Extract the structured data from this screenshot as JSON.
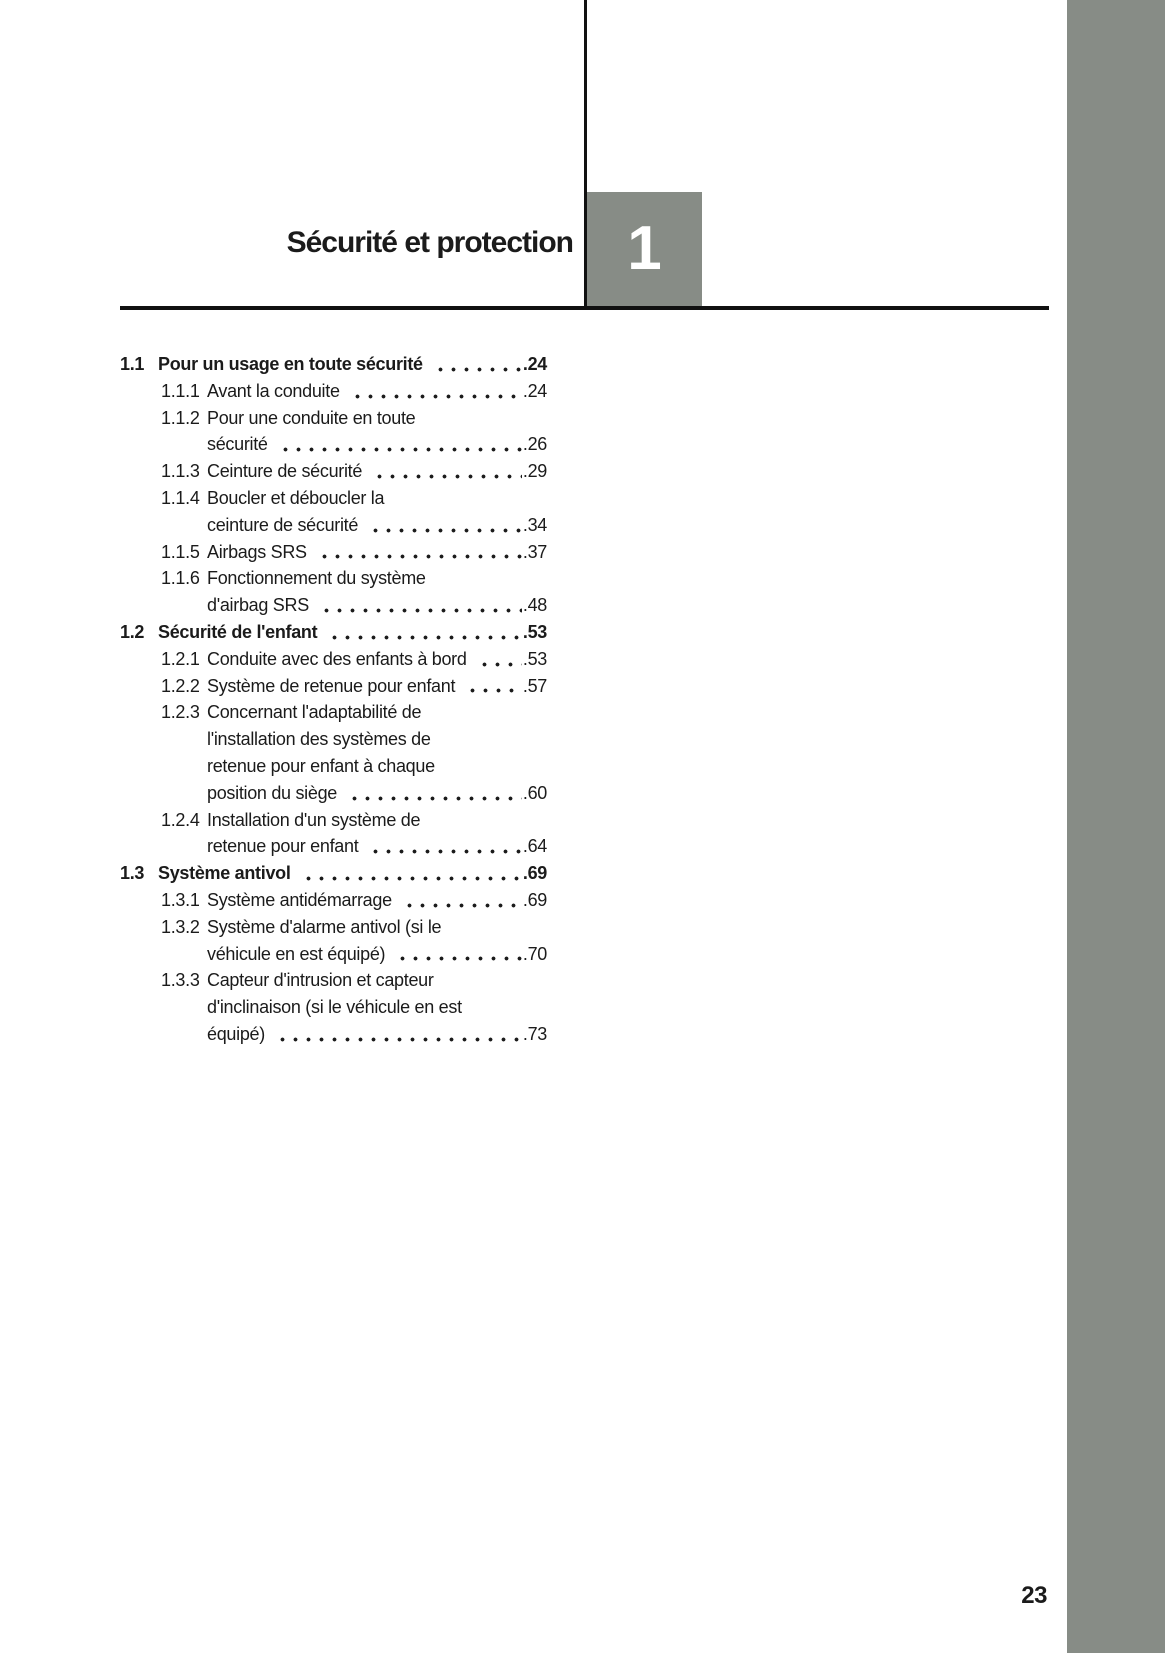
{
  "page": {
    "chapter_title": "Sécurité et protection",
    "chapter_number": "1",
    "page_number": "23"
  },
  "colors": {
    "band_gray": "#878c86",
    "rule_black": "#111111",
    "text": "#1b1b1b",
    "chapter_number_white": "#ffffff"
  },
  "toc": {
    "entries": [
      {
        "number": "1.1",
        "level": 1,
        "lines": [
          "Pour un usage en toute sécurité"
        ],
        "page": ".24"
      },
      {
        "number": "1.1.1",
        "level": 2,
        "lines": [
          "Avant la conduite"
        ],
        "page": ".24"
      },
      {
        "number": "1.1.2",
        "level": 2,
        "lines": [
          "Pour une conduite en toute",
          "sécurité"
        ],
        "page": ".26"
      },
      {
        "number": "1.1.3",
        "level": 2,
        "lines": [
          "Ceinture de sécurité"
        ],
        "page": ".29"
      },
      {
        "number": "1.1.4",
        "level": 2,
        "lines": [
          "Boucler et déboucler la",
          "ceinture de sécurité"
        ],
        "page": ".34"
      },
      {
        "number": "1.1.5",
        "level": 2,
        "lines": [
          "Airbags SRS"
        ],
        "page": ".37"
      },
      {
        "number": "1.1.6",
        "level": 2,
        "lines": [
          "Fonctionnement du système",
          "d'airbag SRS"
        ],
        "page": ".48"
      },
      {
        "number": "1.2",
        "level": 1,
        "lines": [
          "Sécurité de l'enfant"
        ],
        "page": ".53"
      },
      {
        "number": "1.2.1",
        "level": 2,
        "lines": [
          "Conduite avec des enfants à bord"
        ],
        "page": ".53"
      },
      {
        "number": "1.2.2",
        "level": 2,
        "lines": [
          "Système de retenue pour enfant"
        ],
        "page": ".57"
      },
      {
        "number": "1.2.3",
        "level": 2,
        "lines": [
          "Concernant l'adaptabilité de",
          "l'installation des systèmes de",
          "retenue pour enfant à chaque",
          "position du siège"
        ],
        "page": ".60"
      },
      {
        "number": "1.2.4",
        "level": 2,
        "lines": [
          "Installation d'un système de",
          "retenue pour enfant"
        ],
        "page": ".64"
      },
      {
        "number": "1.3",
        "level": 1,
        "lines": [
          "Système antivol"
        ],
        "page": ".69"
      },
      {
        "number": "1.3.1",
        "level": 2,
        "lines": [
          "Système antidémarrage"
        ],
        "page": ".69"
      },
      {
        "number": "1.3.2",
        "level": 2,
        "lines": [
          "Système d'alarme antivol (si le",
          "véhicule en est équipé)"
        ],
        "page": ".70"
      },
      {
        "number": "1.3.3",
        "level": 2,
        "lines": [
          "Capteur d'intrusion et capteur",
          "d'inclinaison (si le véhicule en est",
          "équipé)"
        ],
        "page": ".73"
      }
    ]
  }
}
